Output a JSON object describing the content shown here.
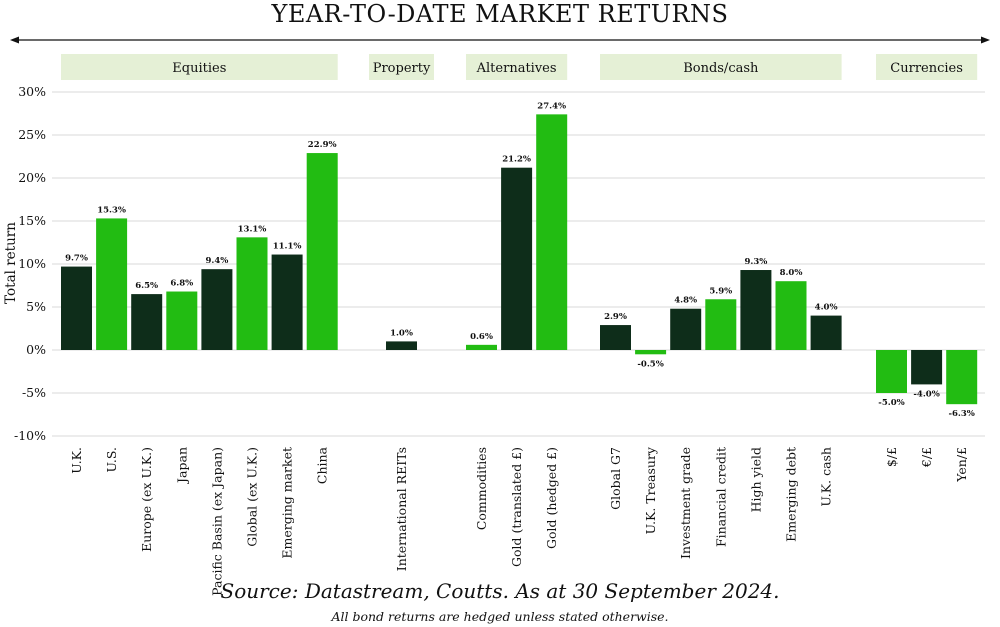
{
  "chart_data": {
    "type": "bar",
    "title": "YEAR-TO-DATE MARKET RETURNS",
    "ylabel": "Total return",
    "ylim": [
      -10,
      30
    ],
    "yticks": [
      {
        "v": 30,
        "label": "30%"
      },
      {
        "v": 25,
        "label": "25%"
      },
      {
        "v": 20,
        "label": "20%"
      },
      {
        "v": 15,
        "label": "15%"
      },
      {
        "v": 10,
        "label": "10%"
      },
      {
        "v": 5,
        "label": "5%"
      },
      {
        "v": 0,
        "label": "0%"
      },
      {
        "v": -5,
        "label": "-5%"
      },
      {
        "v": -10,
        "label": "-10%"
      }
    ],
    "grid": true,
    "colors": {
      "dark": "#0e2d1a",
      "light": "#22bc12",
      "group_bg": "#e5f0d6",
      "grid": "#d9d9d9"
    },
    "groups": [
      {
        "label": "Equities",
        "bars": [
          {
            "category": "U.K.",
            "value": 9.7,
            "label": "9.7%",
            "color": "dark"
          },
          {
            "category": "U.S.",
            "value": 15.3,
            "label": "15.3%",
            "color": "light"
          },
          {
            "category": "Europe (ex U.K.)",
            "value": 6.5,
            "label": "6.5%",
            "color": "dark"
          },
          {
            "category": "Japan",
            "value": 6.8,
            "label": "6.8%",
            "color": "light"
          },
          {
            "category": "Pacific Basin (ex Japan)",
            "value": 9.4,
            "label": "9.4%",
            "color": "dark"
          },
          {
            "category": "Global (ex U.K.)",
            "value": 13.1,
            "label": "13.1%",
            "color": "light"
          },
          {
            "category": "Emerging market",
            "value": 11.1,
            "label": "11.1%",
            "color": "dark"
          },
          {
            "category": "China",
            "value": 22.9,
            "label": "22.9%",
            "color": "light"
          }
        ]
      },
      {
        "label": "Property",
        "bars": [
          {
            "category": "International REITs",
            "value": 1.0,
            "label": "1.0%",
            "color": "dark"
          }
        ]
      },
      {
        "label": "Alternatives",
        "bars": [
          {
            "category": "Commodities",
            "value": 0.6,
            "label": "0.6%",
            "color": "light"
          },
          {
            "category": "Gold (translated £)",
            "value": 21.2,
            "label": "21.2%",
            "color": "dark"
          },
          {
            "category": "Gold (hedged £)",
            "value": 27.4,
            "label": "27.4%",
            "color": "light"
          }
        ]
      },
      {
        "label": "Bonds/cash",
        "bars": [
          {
            "category": "Global G7",
            "value": 2.9,
            "label": "2.9%",
            "color": "dark"
          },
          {
            "category": "U.K. Treasury",
            "value": -0.5,
            "label": "-0.5%",
            "color": "light"
          },
          {
            "category": "Investment grade",
            "value": 4.8,
            "label": "4.8%",
            "color": "dark"
          },
          {
            "category": "Financial credit",
            "value": 5.9,
            "label": "5.9%",
            "color": "light"
          },
          {
            "category": "High yield",
            "value": 9.3,
            "label": "9.3%",
            "color": "dark"
          },
          {
            "category": "Emerging debt",
            "value": 8.0,
            "label": "8.0%",
            "color": "light"
          },
          {
            "category": "U.K. cash",
            "value": 4.0,
            "label": "4.0%",
            "color": "dark"
          }
        ]
      },
      {
        "label": "Currencies",
        "bars": [
          {
            "category": "$/£",
            "value": -5.0,
            "label": "-5.0%",
            "color": "light"
          },
          {
            "category": "€/£",
            "value": -4.0,
            "label": "-4.0%",
            "color": "dark"
          },
          {
            "category": "Yen/£",
            "value": -6.3,
            "label": "-6.3%",
            "color": "light"
          }
        ]
      }
    ]
  },
  "footer": {
    "source": "Source: Datastream, Coutts. As at 30 September 2024.",
    "note": "All bond returns are hedged unless stated otherwise."
  }
}
